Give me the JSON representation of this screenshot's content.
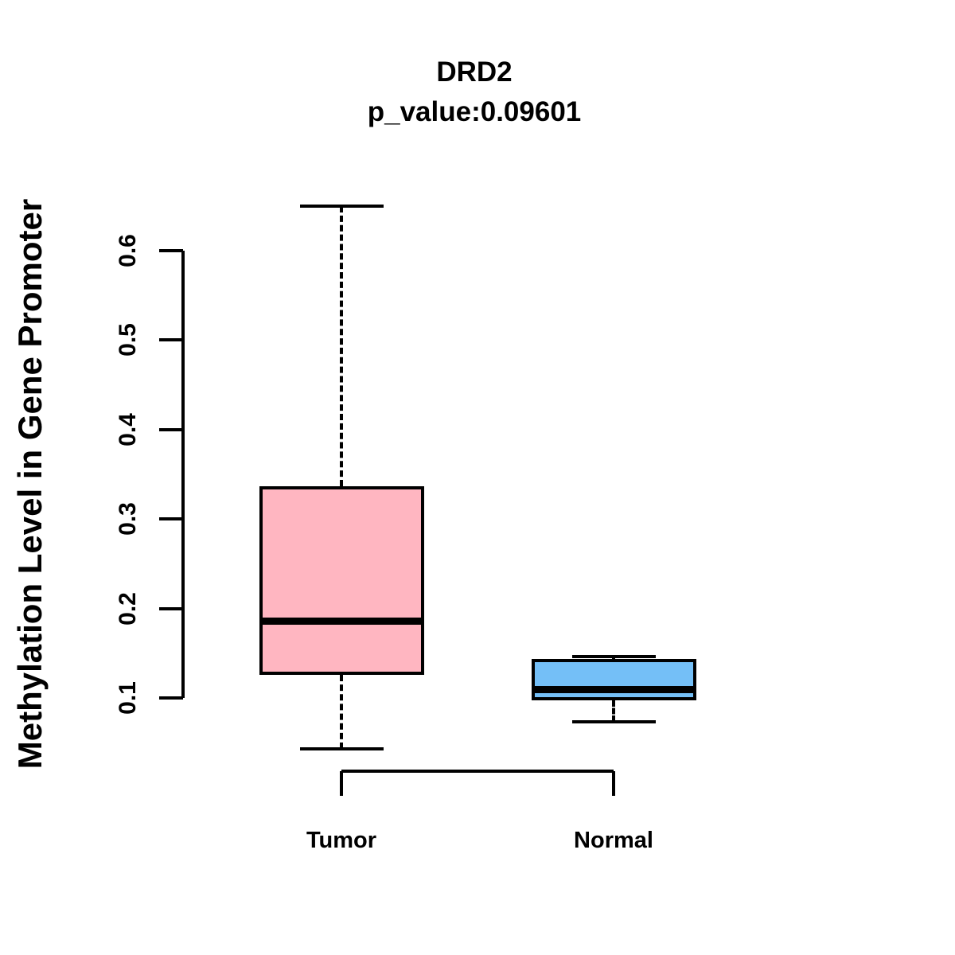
{
  "chart_data": {
    "type": "boxplot",
    "title": "DRD2",
    "subtitle": "p_value:0.09601",
    "ylabel": "Methylation Level in Gene Promoter",
    "xlabel": "",
    "ylim": [
      0.043,
      0.65
    ],
    "yticks": [
      "0.1",
      "0.2",
      "0.3",
      "0.4",
      "0.5",
      "0.6"
    ],
    "grid": false,
    "legend_position": "none",
    "whisker_style": "dashed",
    "groups": [
      {
        "label": "Tumor",
        "fill_color": "#FFB6C1",
        "stats": {
          "min": 0.043,
          "q1": 0.126,
          "median": 0.186,
          "q3": 0.337,
          "max": 0.65
        }
      },
      {
        "label": "Normal",
        "fill_color": "#74BFF7",
        "stats": {
          "min": 0.073,
          "q1": 0.097,
          "median": 0.11,
          "q3": 0.144,
          "max": 0.146
        }
      }
    ]
  },
  "colors": {
    "background": "#FFFFFF",
    "axis": "#000000",
    "text": "#000000",
    "tumor_fill": "#FFB6C1",
    "normal_fill": "#74BFF7"
  }
}
